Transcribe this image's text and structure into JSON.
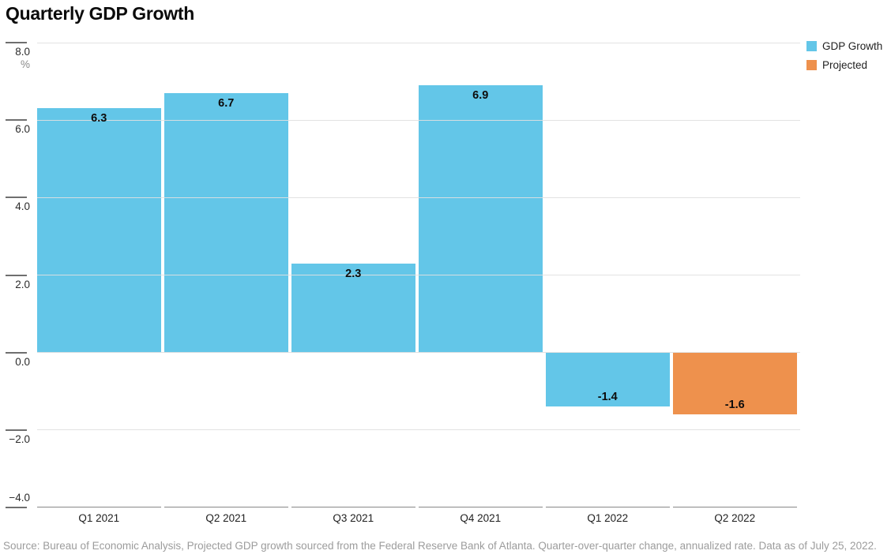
{
  "header": {
    "title": "Quarterly GDP Growth"
  },
  "legend": {
    "items": [
      {
        "label": "GDP Growth",
        "color": "#63c6e8"
      },
      {
        "label": "Projected",
        "color": "#ee914d"
      }
    ]
  },
  "footer": {
    "source_note": "Source: Bureau of Economic Analysis, Projected GDP growth sourced from the Federal Reserve Bank of Atlanta. Quarter-over-quarter change, annualized rate. Data as of July 25, 2022."
  },
  "chart_data": {
    "type": "bar",
    "title": "Quarterly GDP Growth",
    "categories": [
      "Q1 2021",
      "Q2 2021",
      "Q3 2021",
      "Q4 2021",
      "Q1 2022",
      "Q2 2022"
    ],
    "series": [
      {
        "name": "GDP Growth",
        "color": "#63c6e8",
        "values": [
          6.3,
          6.7,
          2.3,
          6.9,
          -1.4,
          null
        ]
      },
      {
        "name": "Projected",
        "color": "#ee914d",
        "values": [
          null,
          null,
          null,
          null,
          null,
          -1.6
        ]
      }
    ],
    "bar_labels": [
      "6.3",
      "6.7",
      "2.3",
      "6.9",
      "-1.4",
      "-1.6"
    ],
    "yaxis": {
      "min": -4,
      "max": 8,
      "unit_label": "%",
      "ticks": [
        {
          "value": 8,
          "label": "8.0"
        },
        {
          "value": 6,
          "label": "6.0"
        },
        {
          "value": 4,
          "label": "4.0"
        },
        {
          "value": 2,
          "label": "2.0"
        },
        {
          "value": 0,
          "label": "0.0"
        },
        {
          "value": -2,
          "label": "−2.0"
        },
        {
          "value": -4,
          "label": "−4.0"
        }
      ]
    },
    "grid": "horizontal",
    "legend_position": "top-right",
    "value_labels": "inside-bars"
  }
}
